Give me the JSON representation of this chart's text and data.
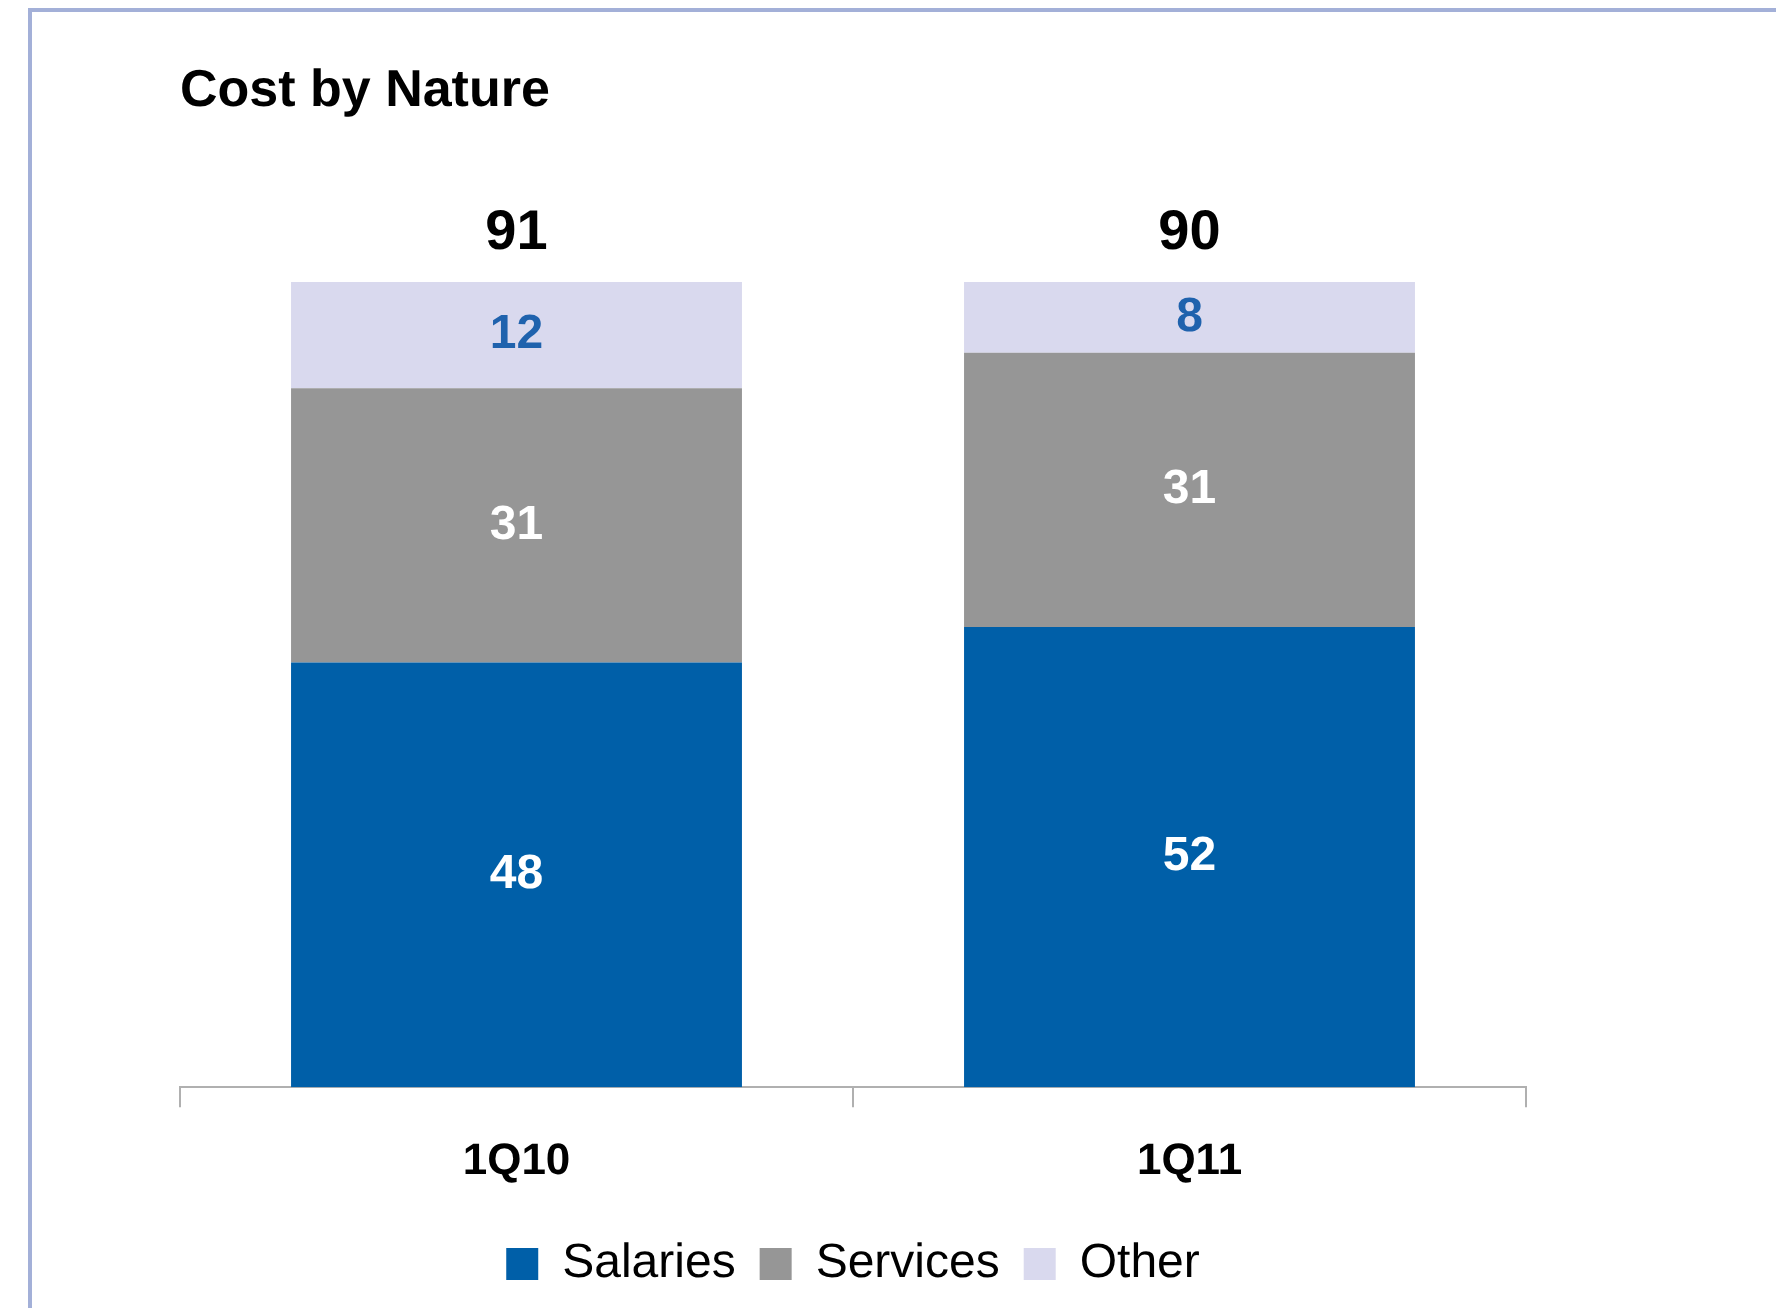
{
  "chart_data": {
    "type": "bar",
    "title": "Cost by Nature",
    "categories": [
      "1Q10",
      "1Q11"
    ],
    "stacked": true,
    "data_labels": true,
    "legend": "bottom",
    "grid": false,
    "series": [
      {
        "name": "Salaries",
        "color": "#005fa8",
        "values": [
          48,
          52
        ]
      },
      {
        "name": "Services",
        "color": "#969696",
        "values": [
          31,
          31
        ]
      },
      {
        "name": "Other",
        "color": "#d9d9ee",
        "values": [
          12,
          8
        ]
      }
    ],
    "totals": [
      "91",
      "90"
    ]
  }
}
